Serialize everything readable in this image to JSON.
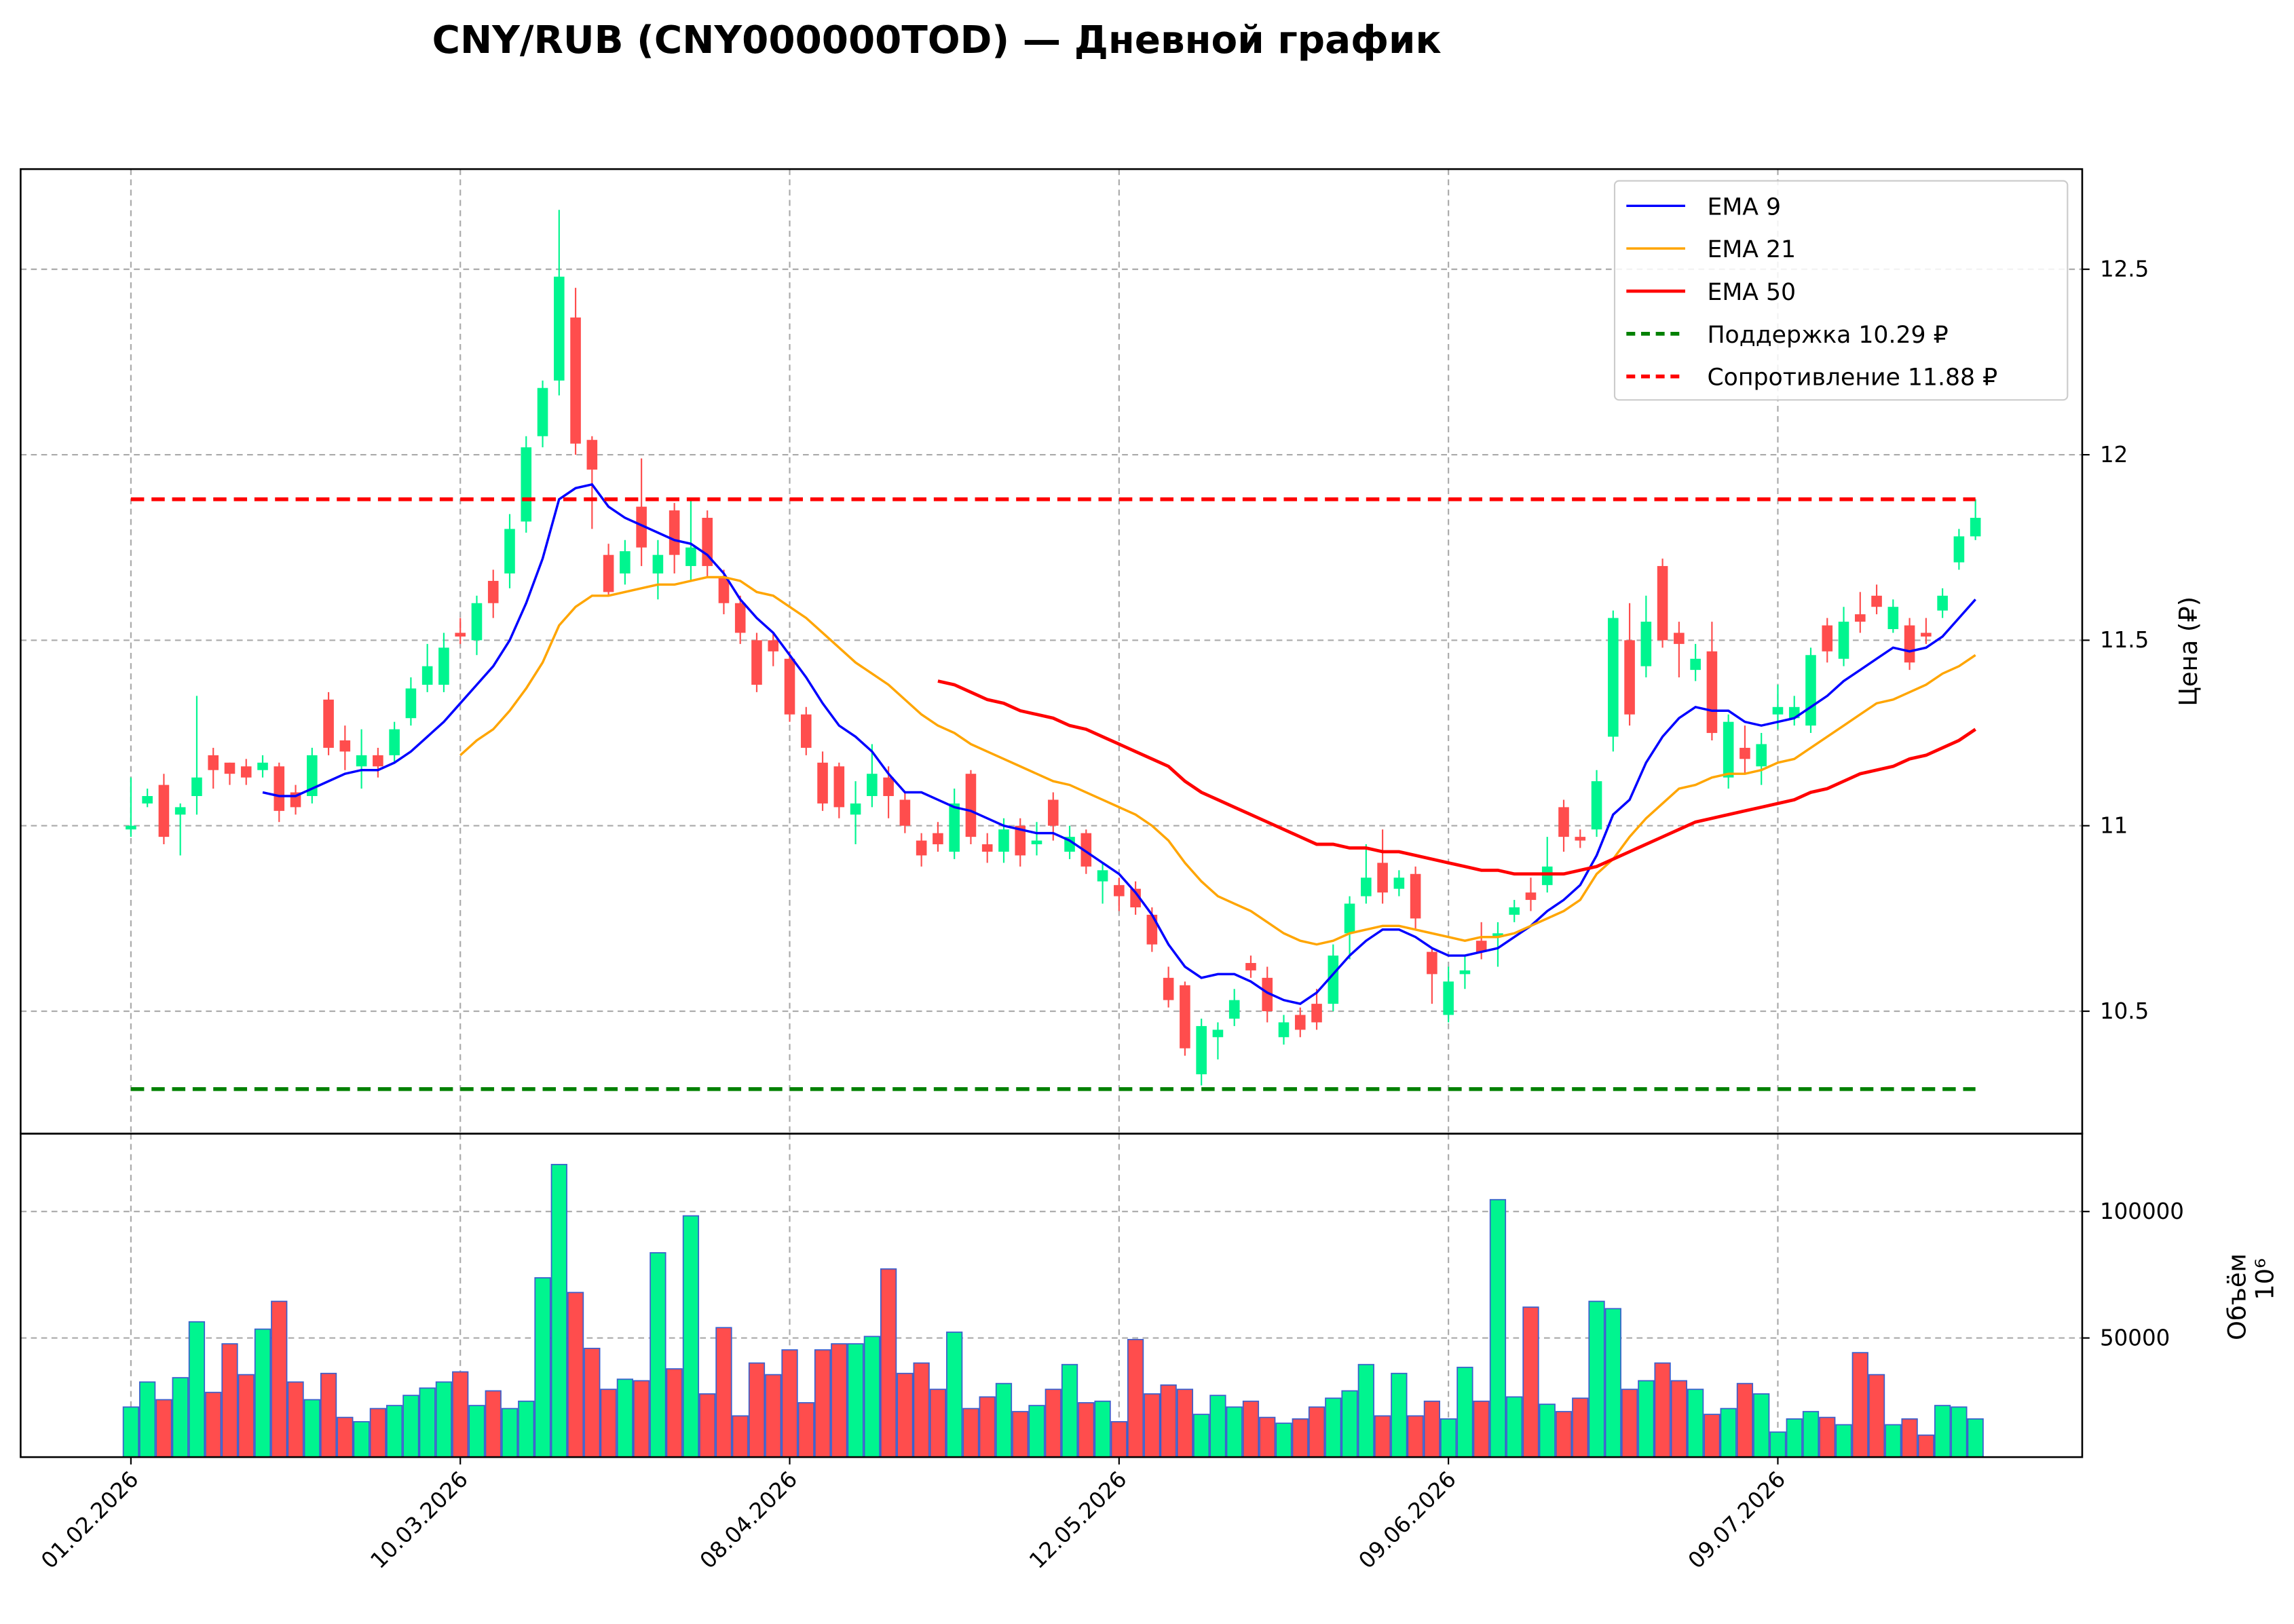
{
  "chart_data": {
    "type": "candlestick",
    "title": "CNY/RUB (CNY000000TOD) — Дневной график",
    "ylabel": "Цена (₽)",
    "categories": [
      "01.02.2026",
      null,
      null,
      null,
      null,
      null,
      null,
      null,
      null,
      null,
      null,
      null,
      null,
      null,
      null,
      null,
      null,
      null,
      null,
      null,
      "10.03.2026",
      null,
      null,
      null,
      null,
      null,
      null,
      null,
      null,
      null,
      null,
      null,
      null,
      null,
      null,
      null,
      null,
      null,
      null,
      null,
      "08.04.2026",
      null,
      null,
      null,
      null,
      null,
      null,
      null,
      null,
      null,
      null,
      null,
      null,
      null,
      null,
      null,
      null,
      null,
      null,
      null,
      "12.05.2026",
      null,
      null,
      null,
      null,
      null,
      null,
      null,
      null,
      null,
      null,
      null,
      null,
      null,
      null,
      null,
      null,
      null,
      null,
      null,
      "09.06.2026",
      null,
      null,
      null,
      null,
      null,
      null,
      null,
      null,
      null,
      null,
      null,
      null,
      null,
      null,
      null,
      null,
      null,
      null,
      null,
      "09.07.2026",
      null,
      null,
      null,
      null,
      null,
      null,
      null,
      null,
      null,
      null,
      null,
      null
    ],
    "open": [
      10.99,
      11.06,
      11.11,
      11.03,
      11.08,
      11.19,
      11.17,
      11.16,
      11.15,
      11.16,
      11.09,
      11.08,
      11.34,
      11.23,
      11.16,
      11.19,
      11.19,
      11.29,
      11.38,
      11.38,
      11.52,
      11.5,
      11.66,
      11.68,
      11.82,
      12.05,
      12.2,
      12.37,
      12.04,
      11.73,
      11.68,
      11.86,
      11.68,
      11.85,
      11.7,
      11.83,
      11.67,
      11.6,
      11.5,
      11.5,
      11.45,
      11.3,
      11.17,
      11.16,
      11.03,
      11.08,
      11.13,
      11.07,
      10.96,
      10.98,
      10.93,
      11.14,
      10.95,
      10.93,
      11.0,
      10.95,
      11.07,
      10.93,
      10.98,
      10.85,
      10.84,
      10.83,
      10.76,
      10.59,
      10.57,
      10.33,
      10.43,
      10.48,
      10.63,
      10.59,
      10.43,
      10.49,
      10.52,
      10.52,
      10.71,
      10.81,
      10.9,
      10.83,
      10.87,
      10.66,
      10.49,
      10.6,
      10.69,
      10.7,
      10.76,
      10.82,
      10.84,
      11.05,
      10.97,
      10.99,
      11.24,
      11.5,
      11.43,
      11.7,
      11.52,
      11.42,
      11.47,
      11.13,
      11.21,
      11.16,
      11.3,
      11.29,
      11.27,
      11.54,
      11.45,
      11.57,
      11.62,
      11.53,
      11.54,
      11.52,
      11.58,
      11.71,
      11.78
    ],
    "high": [
      11.13,
      11.1,
      11.14,
      11.06,
      11.35,
      11.21,
      11.17,
      11.18,
      11.19,
      11.17,
      11.11,
      11.21,
      11.36,
      11.27,
      11.26,
      11.21,
      11.28,
      11.4,
      11.49,
      11.52,
      11.56,
      11.62,
      11.69,
      11.84,
      12.05,
      12.2,
      12.66,
      12.45,
      12.05,
      11.76,
      11.77,
      11.99,
      11.77,
      11.87,
      11.88,
      11.85,
      11.69,
      11.62,
      11.52,
      11.52,
      11.47,
      11.32,
      11.2,
      11.17,
      11.12,
      11.22,
      11.16,
      11.09,
      10.98,
      11.01,
      11.1,
      11.15,
      10.98,
      11.02,
      11.02,
      11.01,
      11.09,
      11.0,
      10.99,
      10.9,
      10.86,
      10.85,
      10.78,
      10.62,
      10.58,
      10.48,
      10.47,
      10.56,
      10.65,
      10.62,
      10.49,
      10.51,
      10.56,
      10.68,
      10.81,
      10.95,
      10.99,
      10.88,
      10.89,
      10.67,
      10.62,
      10.65,
      10.74,
      10.74,
      10.8,
      10.86,
      10.97,
      11.07,
      10.99,
      11.15,
      11.58,
      11.6,
      11.62,
      11.72,
      11.55,
      11.49,
      11.55,
      11.3,
      11.27,
      11.25,
      11.38,
      11.35,
      11.48,
      11.56,
      11.59,
      11.63,
      11.65,
      11.61,
      11.56,
      11.56,
      11.64,
      11.8,
      11.88
    ],
    "low": [
      10.97,
      11.05,
      10.95,
      10.92,
      11.03,
      11.1,
      11.11,
      11.11,
      11.13,
      11.01,
      11.03,
      11.06,
      11.19,
      11.15,
      11.1,
      11.13,
      11.17,
      11.27,
      11.36,
      11.36,
      11.49,
      11.46,
      11.56,
      11.64,
      11.79,
      12.02,
      12.16,
      12.0,
      11.8,
      11.62,
      11.65,
      11.7,
      11.61,
      11.68,
      11.66,
      11.67,
      11.57,
      11.49,
      11.36,
      11.43,
      11.28,
      11.19,
      11.04,
      11.02,
      10.95,
      11.05,
      11.02,
      10.98,
      10.89,
      10.93,
      10.91,
      10.95,
      10.9,
      10.9,
      10.89,
      10.92,
      10.96,
      10.91,
      10.87,
      10.79,
      10.77,
      10.76,
      10.66,
      10.51,
      10.38,
      10.3,
      10.37,
      10.46,
      10.59,
      10.47,
      10.41,
      10.43,
      10.45,
      10.5,
      10.64,
      10.79,
      10.79,
      10.81,
      10.72,
      10.52,
      10.47,
      10.56,
      10.64,
      10.62,
      10.74,
      10.77,
      10.82,
      10.93,
      10.94,
      10.97,
      11.2,
      11.27,
      11.4,
      11.48,
      11.4,
      11.39,
      11.23,
      11.1,
      11.14,
      11.11,
      11.26,
      11.27,
      11.25,
      11.44,
      11.43,
      11.52,
      11.57,
      11.52,
      11.42,
      11.49,
      11.56,
      11.69,
      11.77
    ],
    "close": [
      11.0,
      11.08,
      10.97,
      11.05,
      11.13,
      11.15,
      11.14,
      11.13,
      11.17,
      11.04,
      11.05,
      11.19,
      11.21,
      11.2,
      11.19,
      11.16,
      11.26,
      11.37,
      11.43,
      11.48,
      11.51,
      11.6,
      11.6,
      11.8,
      12.02,
      12.18,
      12.48,
      12.03,
      11.96,
      11.63,
      11.74,
      11.75,
      11.73,
      11.73,
      11.75,
      11.7,
      11.6,
      11.52,
      11.38,
      11.47,
      11.3,
      11.21,
      11.06,
      11.05,
      11.06,
      11.14,
      11.08,
      11.0,
      10.92,
      10.95,
      11.06,
      10.97,
      10.93,
      10.99,
      10.92,
      10.96,
      11.0,
      10.97,
      10.89,
      10.88,
      10.81,
      10.78,
      10.68,
      10.53,
      10.4,
      10.46,
      10.45,
      10.53,
      10.61,
      10.5,
      10.47,
      10.45,
      10.47,
      10.65,
      10.79,
      10.86,
      10.82,
      10.86,
      10.75,
      10.6,
      10.58,
      10.61,
      10.66,
      10.71,
      10.78,
      10.8,
      10.89,
      10.97,
      10.96,
      11.12,
      11.56,
      11.3,
      11.55,
      11.5,
      11.49,
      11.45,
      11.25,
      11.28,
      11.18,
      11.22,
      11.32,
      11.32,
      11.46,
      11.47,
      11.55,
      11.55,
      11.59,
      11.59,
      11.44,
      11.51,
      11.62,
      11.78,
      11.83
    ],
    "up_color": "#00f58f",
    "down_color": "#ff4d4d",
    "series": [
      {
        "name": "EMA 9",
        "color": "#0000ff",
        "values": [
          null,
          null,
          null,
          null,
          null,
          null,
          null,
          null,
          11.09,
          11.08,
          11.08,
          11.1,
          11.12,
          11.14,
          11.15,
          11.15,
          11.17,
          11.2,
          11.24,
          11.28,
          11.33,
          11.38,
          11.43,
          11.5,
          11.6,
          11.72,
          11.88,
          11.91,
          11.92,
          11.86,
          11.83,
          11.81,
          11.79,
          11.77,
          11.76,
          11.73,
          11.68,
          11.61,
          11.56,
          11.52,
          11.46,
          11.4,
          11.33,
          11.27,
          11.24,
          11.2,
          11.14,
          11.09,
          11.09,
          11.07,
          11.05,
          11.04,
          11.02,
          11.0,
          10.99,
          10.98,
          10.98,
          10.96,
          10.93,
          10.9,
          10.87,
          10.82,
          10.76,
          10.68,
          10.62,
          10.59,
          10.6,
          10.6,
          10.58,
          10.55,
          10.53,
          10.52,
          10.55,
          10.6,
          10.65,
          10.69,
          10.72,
          10.72,
          10.7,
          10.67,
          10.65,
          10.65,
          10.66,
          10.67,
          10.7,
          10.73,
          10.77,
          10.8,
          10.84,
          10.92,
          11.03,
          11.07,
          11.17,
          11.24,
          11.29,
          11.32,
          11.31,
          11.31,
          11.28,
          11.27,
          11.28,
          11.29,
          11.32,
          11.35,
          11.39,
          11.42,
          11.45,
          11.48,
          11.47,
          11.48,
          11.51,
          11.56,
          11.61
        ]
      },
      {
        "name": "EMA 21",
        "color": "#ffa500",
        "values": [
          null,
          null,
          null,
          null,
          null,
          null,
          null,
          null,
          null,
          null,
          null,
          null,
          null,
          null,
          null,
          null,
          null,
          null,
          null,
          null,
          11.19,
          11.23,
          11.26,
          11.31,
          11.37,
          11.44,
          11.54,
          11.59,
          11.62,
          11.62,
          11.63,
          11.64,
          11.65,
          11.65,
          11.66,
          11.67,
          11.67,
          11.66,
          11.63,
          11.62,
          11.59,
          11.56,
          11.52,
          11.48,
          11.44,
          11.41,
          11.38,
          11.34,
          11.3,
          11.27,
          11.25,
          11.22,
          11.2,
          11.18,
          11.16,
          11.14,
          11.12,
          11.11,
          11.09,
          11.07,
          11.05,
          11.03,
          11.0,
          10.96,
          10.9,
          10.85,
          10.81,
          10.79,
          10.77,
          10.74,
          10.71,
          10.69,
          10.68,
          10.69,
          10.71,
          10.72,
          10.73,
          10.73,
          10.72,
          10.71,
          10.7,
          10.69,
          10.7,
          10.7,
          10.71,
          10.73,
          10.75,
          10.77,
          10.8,
          10.87,
          10.91,
          10.97,
          11.02,
          11.06,
          11.1,
          11.11,
          11.13,
          11.14,
          11.14,
          11.15,
          11.17,
          11.18,
          11.21,
          11.24,
          11.27,
          11.3,
          11.33,
          11.34,
          11.36,
          11.38,
          11.41,
          11.43,
          11.46
        ]
      },
      {
        "name": "EMA 50",
        "color": "#ff0000",
        "values": [
          null,
          null,
          null,
          null,
          null,
          null,
          null,
          null,
          null,
          null,
          null,
          null,
          null,
          null,
          null,
          null,
          null,
          null,
          null,
          null,
          null,
          null,
          null,
          null,
          null,
          null,
          null,
          null,
          null,
          null,
          null,
          null,
          null,
          null,
          null,
          null,
          null,
          null,
          null,
          null,
          null,
          null,
          null,
          null,
          null,
          null,
          null,
          null,
          null,
          11.39,
          11.38,
          11.36,
          11.34,
          11.33,
          11.31,
          11.3,
          11.29,
          11.27,
          11.26,
          11.24,
          11.22,
          11.2,
          11.18,
          11.16,
          11.12,
          11.09,
          11.07,
          11.05,
          11.03,
          11.01,
          10.99,
          10.97,
          10.95,
          10.95,
          10.94,
          10.94,
          10.93,
          10.93,
          10.92,
          10.91,
          10.9,
          10.89,
          10.88,
          10.88,
          10.87,
          10.87,
          10.87,
          10.87,
          10.88,
          10.89,
          10.91,
          10.93,
          10.95,
          10.97,
          10.99,
          11.01,
          11.02,
          11.03,
          11.04,
          11.05,
          11.06,
          11.07,
          11.09,
          11.1,
          11.12,
          11.14,
          11.15,
          11.16,
          11.18,
          11.19,
          11.21,
          11.23,
          11.26
        ]
      }
    ],
    "support": {
      "name": "Поддержка 10.29 ₽",
      "value": 10.29,
      "color": "#008000"
    },
    "resistance": {
      "name": "Сопротивление 11.88 ₽",
      "value": 11.88,
      "color": "#ff0000"
    },
    "ylim": [
      10.17,
      12.77
    ],
    "yticks": [
      10.5,
      11.0,
      11.5,
      12.0,
      12.5
    ],
    "grid": true,
    "legend": "upper right",
    "volume": {
      "label": "Объём",
      "offset_label": "10⁶",
      "ylim": [
        2900,
        130800
      ],
      "yticks": [
        50000,
        100000
      ],
      "edge_color": "#3a5fcd",
      "values": [
        22700,
        32600,
        25600,
        34300,
        56400,
        28500,
        47700,
        35500,
        53500,
        64500,
        32600,
        25600,
        36000,
        18600,
        16900,
        22100,
        23300,
        27300,
        30200,
        32600,
        36600,
        23300,
        29100,
        22100,
        25000,
        73800,
        118600,
        68000,
        45900,
        29700,
        33700,
        33100,
        83700,
        37800,
        98300,
        27900,
        54100,
        19200,
        40100,
        35500,
        45300,
        24400,
        45300,
        47700,
        47700,
        50600,
        77300,
        36000,
        40100,
        29700,
        52300,
        22100,
        26700,
        32000,
        20900,
        23300,
        29700,
        39500,
        24400,
        25000,
        16900,
        49400,
        27900,
        31400,
        29700,
        19800,
        27300,
        22700,
        25000,
        18600,
        16300,
        18000,
        22700,
        26200,
        29100,
        39500,
        19200,
        36000,
        19200,
        25000,
        18000,
        38400,
        25000,
        104700,
        26700,
        62200,
        23800,
        20900,
        26200,
        64500,
        61600,
        29700,
        33100,
        40100,
        33100,
        29700,
        19800,
        22100,
        32000,
        27900,
        12800,
        18000,
        20900,
        18600,
        15700,
        44200,
        35500,
        15700,
        18000,
        11600,
        23300,
        22700,
        18000
      ]
    }
  }
}
